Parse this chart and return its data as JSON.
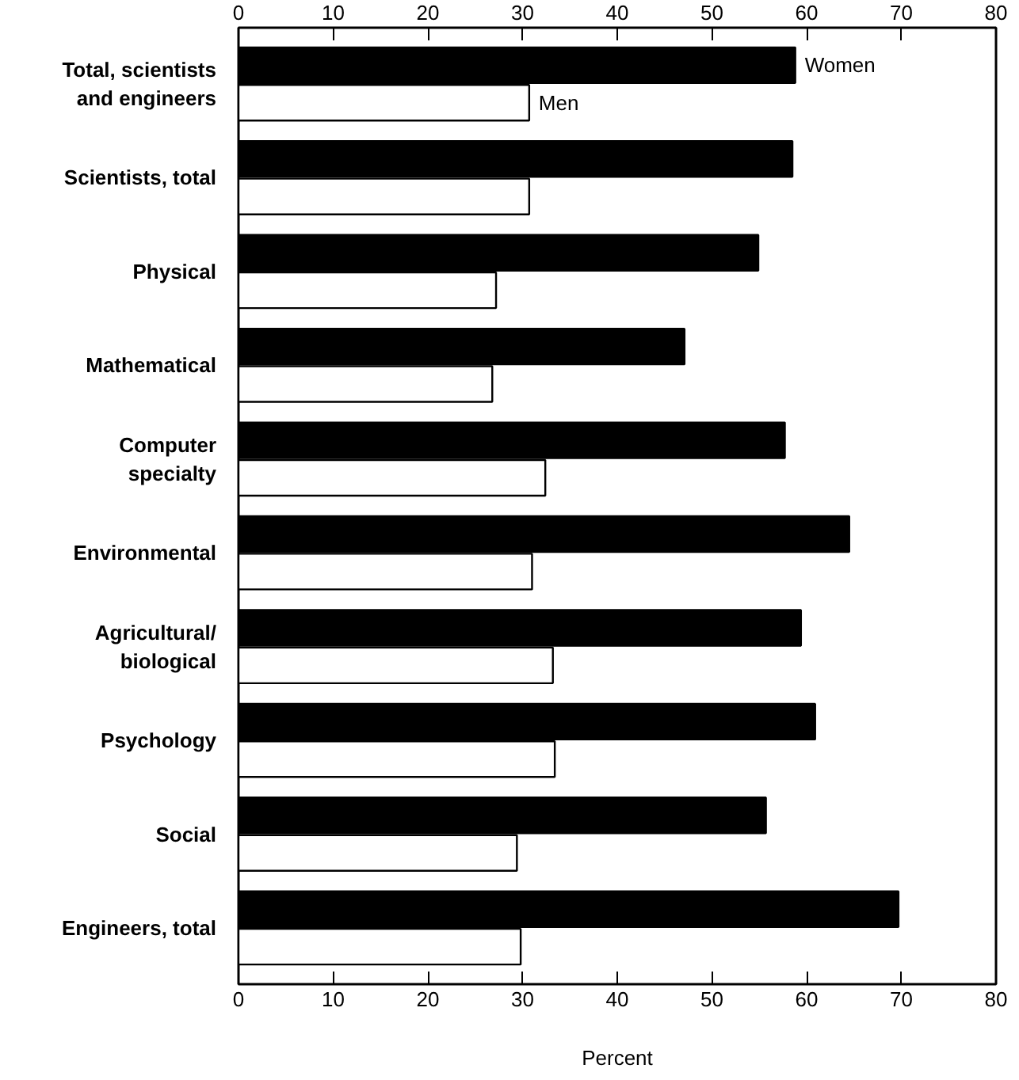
{
  "chart_data": {
    "type": "bar",
    "orientation": "horizontal",
    "xlabel": "Percent",
    "categories": [
      "Total, scientists\nand engineers",
      "Scientists, total",
      "Physical",
      "Mathematical",
      "Computer\nspecialty",
      "Environmental",
      "Agricultural/\nbiological",
      "Psychology",
      "Social",
      "Engineers, total"
    ],
    "series": [
      {
        "name": "Women",
        "color": "#000000",
        "values": [
          58.8,
          58.5,
          54.9,
          47.1,
          57.7,
          64.5,
          59.4,
          60.9,
          55.7,
          69.7
        ]
      },
      {
        "name": "Men",
        "color": "#ffffff",
        "values": [
          30.7,
          30.7,
          27.2,
          26.8,
          32.4,
          31.0,
          33.2,
          33.4,
          29.4,
          29.8
        ]
      }
    ],
    "xlim": [
      0,
      80
    ],
    "xticks": [
      0,
      10,
      20,
      30,
      40,
      50,
      60,
      70,
      80
    ],
    "x2lim": [
      0,
      80
    ],
    "x2ticks": [
      0,
      10,
      20,
      30,
      40,
      50,
      60,
      70,
      80
    ],
    "grid": false,
    "legend": "top right"
  }
}
